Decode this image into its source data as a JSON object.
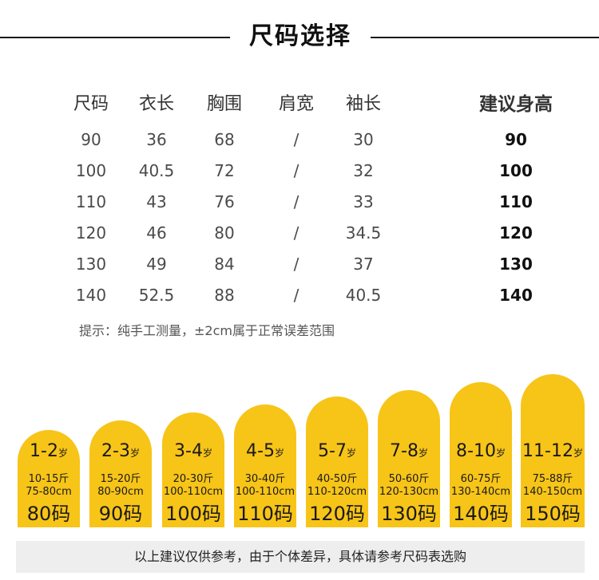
{
  "title": "尺码选择",
  "table": {
    "headers": [
      "尺码",
      "衣长",
      "胸围",
      "肩宽",
      "袖长",
      "建议身高"
    ],
    "rows": [
      [
        "90",
        "36",
        "68",
        "/",
        "30",
        "90"
      ],
      [
        "100",
        "40.5",
        "72",
        "/",
        "32",
        "100"
      ],
      [
        "110",
        "43",
        "76",
        "/",
        "33",
        "110"
      ],
      [
        "120",
        "46",
        "80",
        "/",
        "34.5",
        "120"
      ],
      [
        "130",
        "49",
        "84",
        "/",
        "37",
        "130"
      ],
      [
        "140",
        "52.5",
        "88",
        "/",
        "40.5",
        "140"
      ]
    ]
  },
  "tip": "提示：纯手工测量，±2cm属于正常误差范围",
  "pills": [
    {
      "age": "1-2",
      "unit": "岁",
      "weight": "10-15斤",
      "height": "75-80cm",
      "size": "80码"
    },
    {
      "age": "2-3",
      "unit": "岁",
      "weight": "15-20斤",
      "height": "80-90cm",
      "size": "90码"
    },
    {
      "age": "3-4",
      "unit": "岁",
      "weight": "20-30斤",
      "height": "100-110cm",
      "size": "100码"
    },
    {
      "age": "4-5",
      "unit": "岁",
      "weight": "30-40斤",
      "height": "100-110cm",
      "size": "110码"
    },
    {
      "age": "5-7",
      "unit": "岁",
      "weight": "40-50斤",
      "height": "110-120cm",
      "size": "120码"
    },
    {
      "age": "7-8",
      "unit": "岁",
      "weight": "50-60斤",
      "height": "120-130cm",
      "size": "130码"
    },
    {
      "age": "8-10",
      "unit": "岁",
      "weight": "60-75斤",
      "height": "130-140cm",
      "size": "140码"
    },
    {
      "age": "11-12",
      "unit": "岁",
      "weight": "75-88斤",
      "height": "140-150cm",
      "size": "150码"
    }
  ],
  "footer": "以上建议仅供参考，由于个体差异，具体请参考尺码表选购",
  "colors": {
    "accent": "#f7c418",
    "footer_bg": "#eeeeee"
  }
}
